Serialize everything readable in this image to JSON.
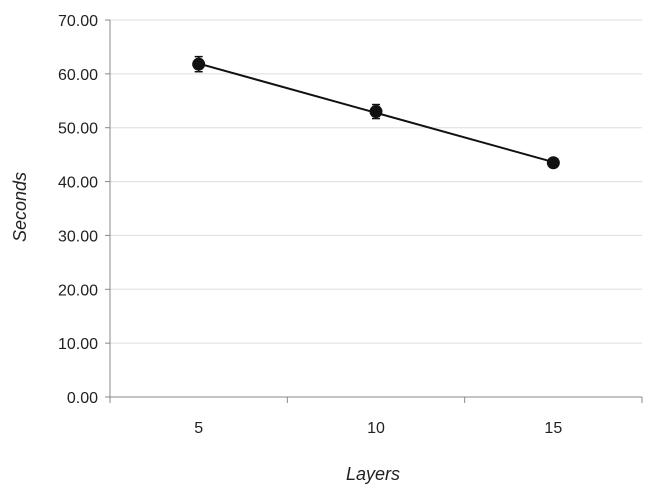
{
  "chart_data": {
    "type": "scatter",
    "title": "",
    "xlabel": "Layers",
    "ylabel": "Seconds",
    "x_tick_labels": [
      "5",
      "10",
      "15"
    ],
    "y_tick_labels": [
      "0.00",
      "10.00",
      "20.00",
      "30.00",
      "40.00",
      "50.00",
      "60.00",
      "70.00"
    ],
    "xlim": [
      2.5,
      17.5
    ],
    "ylim": [
      0,
      70
    ],
    "grid": true,
    "legend": "none",
    "series": [
      {
        "x": [
          5,
          10,
          15
        ],
        "y": [
          61.8,
          53.0,
          43.5
        ],
        "error": [
          1.4,
          1.3,
          0.6
        ],
        "trendline": "linear",
        "color": "#111111"
      }
    ]
  }
}
